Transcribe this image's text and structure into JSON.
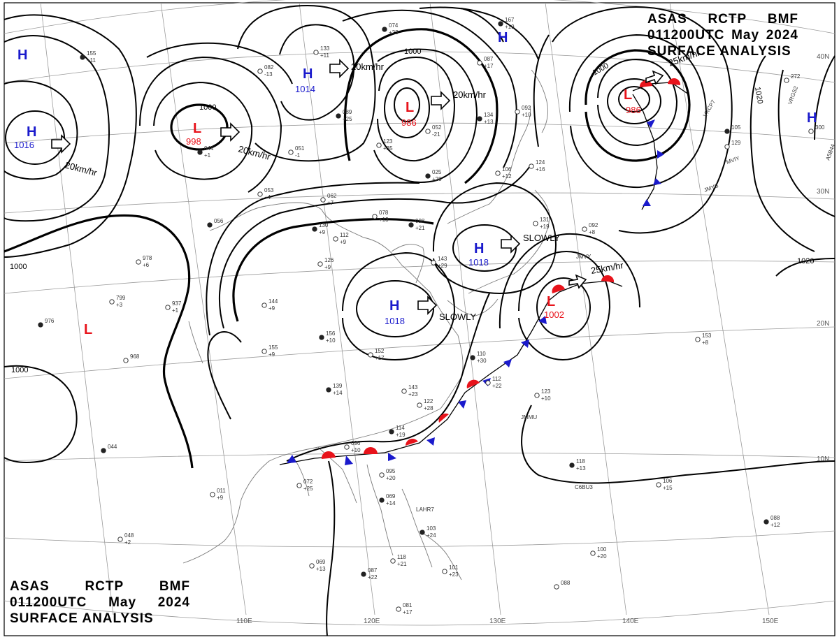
{
  "header": {
    "agency": "ASAS",
    "station": "RCTP",
    "code": "BMF",
    "datetime": "011200UTC",
    "month": "May",
    "year": "2024",
    "title": "SURFACE ANALYSIS"
  },
  "colors": {
    "high": "#1a1acc",
    "low": "#e8131b",
    "isobar": "#000000",
    "coast": "#7a7a7a",
    "grid": "#9a9a9a"
  },
  "pressure_systems": [
    {
      "type": "H",
      "value": "1016"
    },
    {
      "type": "L",
      "value": "998"
    },
    {
      "type": "H",
      "value": "1014"
    },
    {
      "type": "L",
      "value": "986"
    },
    {
      "type": "H",
      "value": ""
    },
    {
      "type": "L",
      "value": "986"
    },
    {
      "type": "H",
      "value": ""
    },
    {
      "type": "H",
      "value": "1018"
    },
    {
      "type": "H",
      "value": "1018"
    },
    {
      "type": "L",
      "value": "1002"
    },
    {
      "type": "L",
      "value": ""
    },
    {
      "type": "H",
      "value": ""
    }
  ],
  "motion_labels": [
    "20km/hr",
    "20km/hr",
    "20km/hr",
    "20km/hr",
    "25km/hr",
    "25km/hr",
    "SLOWLY",
    "SLOWLY"
  ],
  "isobar_labels": [
    "1000",
    "1000",
    "1000",
    "1000",
    "1000",
    "1020",
    "1020"
  ],
  "lat_labels": [
    "40N",
    "30N",
    "20N",
    "10N"
  ],
  "lon_labels": [
    "110E",
    "120E",
    "130E",
    "140E",
    "150E"
  ],
  "ship_calls": [
    "VRGS2",
    "VRCP7",
    "MVIY",
    "JMYS",
    "A5B44",
    "JMVY",
    "C6BU3",
    "JMMU",
    "LAHR7"
  ],
  "station_obs": [
    [
      "155",
      "+11"
    ],
    [
      "133",
      "+11"
    ],
    [
      "082",
      "-13"
    ],
    [
      "074",
      "+23"
    ],
    [
      "062",
      "+7"
    ],
    [
      "078",
      "+13"
    ],
    [
      "098",
      "+21"
    ],
    [
      "112",
      "+9"
    ],
    [
      "126",
      "+9"
    ],
    [
      "130",
      "+9"
    ],
    [
      "143",
      "+29"
    ],
    [
      "144",
      "+9"
    ],
    [
      "156",
      "+10"
    ],
    [
      "155",
      "+9"
    ],
    [
      "152",
      "+17"
    ],
    [
      "139",
      "+14"
    ],
    [
      "143",
      "+23"
    ],
    [
      "122",
      "+28"
    ],
    [
      "114",
      "+19"
    ],
    [
      "096",
      "+10"
    ],
    [
      "095",
      "+20"
    ],
    [
      "069",
      "+14"
    ],
    [
      "072",
      "+25"
    ],
    [
      "011",
      "+9"
    ],
    [
      "110",
      "+30"
    ],
    [
      "112",
      "+22"
    ],
    [
      "123",
      "+10"
    ],
    [
      "118",
      "+13"
    ],
    [
      "106",
      "+15"
    ],
    [
      "153",
      "+8"
    ],
    [
      "103",
      "+24"
    ],
    [
      "118",
      "+21"
    ],
    [
      "101",
      "+23"
    ],
    [
      "087",
      "+22"
    ],
    [
      "081",
      "+17"
    ],
    [
      "069",
      "+13"
    ],
    [
      "088",
      "+12"
    ],
    [
      "100",
      "+20"
    ],
    [
      "088",
      ""
    ],
    [
      "056",
      ""
    ],
    [
      "053",
      "+4"
    ],
    [
      "051",
      "-1"
    ],
    [
      "044",
      "+1"
    ],
    [
      "937",
      "+1"
    ],
    [
      "968",
      ""
    ],
    [
      "976",
      ""
    ],
    [
      "799",
      "+3"
    ],
    [
      "978",
      "+6"
    ],
    [
      "044",
      ""
    ],
    [
      "048",
      "+2"
    ],
    [
      "123",
      "+35"
    ],
    [
      "025",
      "+20"
    ],
    [
      "092",
      "+10"
    ],
    [
      "106",
      "+12"
    ],
    [
      "134",
      "+13"
    ],
    [
      "124",
      "+16"
    ],
    [
      "131",
      "+19"
    ],
    [
      "167",
      "+19"
    ],
    [
      "087",
      "+17"
    ],
    [
      "052",
      "-21"
    ],
    [
      "089",
      "+25"
    ],
    [
      "092",
      "+8"
    ],
    [
      "129",
      ""
    ],
    [
      "105",
      ""
    ],
    [
      "300",
      ""
    ],
    [
      "272",
      ""
    ]
  ]
}
